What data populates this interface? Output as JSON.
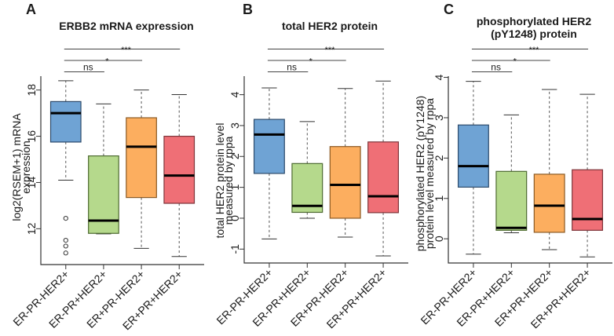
{
  "colors": {
    "fills": [
      "#6fa3d4",
      "#b5d98c",
      "#fcae5f",
      "#ef6f76"
    ],
    "edges": [
      "#2c4a6b",
      "#4d6a30",
      "#8b5a24",
      "#7e343a"
    ],
    "median": "#000000",
    "whisker": "#555555",
    "axis": "#333333"
  },
  "chart_data": [
    {
      "type": "box",
      "panel_label": "A",
      "title": [
        "ERBB2 mRNA expression"
      ],
      "xlabel": "",
      "ylabel": [
        "log2(RSEM+1) mRNA",
        "expression"
      ],
      "ylim": [
        10.45,
        18.6
      ],
      "yticks": [
        12,
        14,
        16,
        18
      ],
      "yticklabels": [
        "12",
        "14",
        "16",
        "18"
      ],
      "grid": false,
      "legend": "none",
      "categories": [
        "ER-PR-HER2+",
        "ER-PR+HER2+",
        "ER+PR-HER2+",
        "ER+PR+HER2+"
      ],
      "boxes": [
        {
          "whisker_low": 14.1,
          "q1": 15.75,
          "median": 17.0,
          "q3": 17.5,
          "whisker_high": 18.4,
          "outliers": [
            12.45,
            11.5,
            11.25,
            10.95
          ]
        },
        {
          "whisker_low": 11.78,
          "q1": 11.8,
          "median": 12.35,
          "q3": 15.15,
          "whisker_high": 17.4,
          "outliers": []
        },
        {
          "whisker_low": 11.15,
          "q1": 13.35,
          "median": 15.55,
          "q3": 16.8,
          "whisker_high": 18.0,
          "outliers": []
        },
        {
          "whisker_low": 10.8,
          "q1": 13.1,
          "median": 14.3,
          "q3": 16.0,
          "whisker_high": 17.8,
          "outliers": []
        }
      ],
      "comparisons": [
        {
          "from": 0,
          "to": 1,
          "label": "ns"
        },
        {
          "from": 0,
          "to": 2,
          "label": "*"
        },
        {
          "from": 0,
          "to": 3,
          "label": "***"
        }
      ]
    },
    {
      "type": "box",
      "panel_label": "B",
      "title": [
        "total HER2 protein"
      ],
      "xlabel": "",
      "ylabel": [
        "total HER2 protein level",
        "measured by rppa"
      ],
      "ylim": [
        -1.45,
        4.6
      ],
      "yticks": [
        -1,
        0,
        1,
        2,
        3,
        4
      ],
      "yticklabels": [
        "-1",
        "0",
        "1",
        "2",
        "3",
        "4"
      ],
      "grid": false,
      "legend": "none",
      "categories": [
        "ER-PR-HER2+",
        "ER-PR+HER2+",
        "ER+PR-HER2+",
        "ER+PR+HER2+"
      ],
      "boxes": [
        {
          "whisker_low": -0.67,
          "q1": 1.45,
          "median": 2.71,
          "q3": 3.2,
          "whisker_high": 4.22,
          "outliers": []
        },
        {
          "whisker_low": 0.0,
          "q1": 0.19,
          "median": 0.4,
          "q3": 1.77,
          "whisker_high": 3.13,
          "outliers": []
        },
        {
          "whisker_low": -0.61,
          "q1": 0.0,
          "median": 1.08,
          "q3": 2.32,
          "whisker_high": 4.2,
          "outliers": []
        },
        {
          "whisker_low": -1.22,
          "q1": 0.18,
          "median": 0.71,
          "q3": 2.47,
          "whisker_high": 4.44,
          "outliers": []
        }
      ],
      "comparisons": [
        {
          "from": 0,
          "to": 1,
          "label": "ns"
        },
        {
          "from": 0,
          "to": 2,
          "label": "*"
        },
        {
          "from": 0,
          "to": 3,
          "label": "***"
        }
      ]
    },
    {
      "type": "box",
      "panel_label": "C",
      "title": [
        "phosphorylated HER2",
        "(pY1248) protein"
      ],
      "xlabel": "",
      "ylabel": [
        "phosphorylated HER2 (pY1248)",
        "protein level measured by rppa"
      ],
      "ylim": [
        -0.6,
        4.03
      ],
      "yticks": [
        0,
        1,
        2,
        3,
        4
      ],
      "yticklabels": [
        "0",
        "1",
        "2",
        "3",
        "4"
      ],
      "grid": false,
      "legend": "none",
      "categories": [
        "ER-PR-HER2+",
        "ER-PR+HER2+",
        "ER+PR-HER2+",
        "ER+PR+HER2+"
      ],
      "boxes": [
        {
          "whisker_low": -0.38,
          "q1": 1.28,
          "median": 1.8,
          "q3": 2.82,
          "whisker_high": 3.9,
          "outliers": []
        },
        {
          "whisker_low": 0.15,
          "q1": 0.21,
          "median": 0.27,
          "q3": 1.67,
          "whisker_high": 3.07,
          "outliers": []
        },
        {
          "whisker_low": -0.27,
          "q1": 0.16,
          "median": 0.82,
          "q3": 1.6,
          "whisker_high": 3.7,
          "outliers": []
        },
        {
          "whisker_low": -0.45,
          "q1": 0.21,
          "median": 0.49,
          "q3": 1.71,
          "whisker_high": 3.58,
          "outliers": []
        }
      ],
      "comparisons": [
        {
          "from": 0,
          "to": 1,
          "label": "ns"
        },
        {
          "from": 0,
          "to": 2,
          "label": "*"
        },
        {
          "from": 0,
          "to": 3,
          "label": "***"
        }
      ]
    }
  ]
}
